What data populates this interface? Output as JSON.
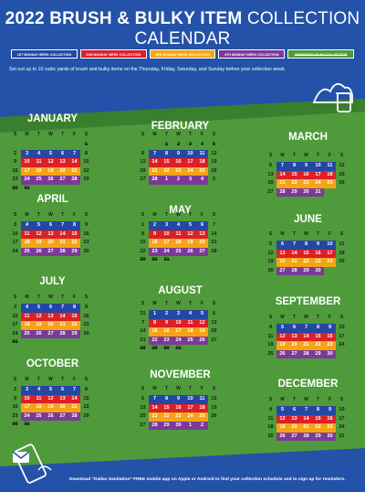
{
  "header": {
    "title_bold": "2022 BRUSH & BULKY ITEM",
    "title_light": "COLLECTION CALENDAR",
    "subtitle": "Set out up to 10 cubic yards of brush and bulky items on the Thursday, Friday, Saturday, and Sunday before your collection week."
  },
  "legend": [
    {
      "label": "1ST MONDAY WEEK COLLECTION",
      "color": "#2547a4"
    },
    {
      "label": "2ND MONDAY WEEK COLLECTION",
      "color": "#dd1f26"
    },
    {
      "label": "3RD MONDAY WEEK COLLECTION",
      "color": "#f5a418"
    },
    {
      "label": "4TH MONDAY WEEK COLLECTION",
      "color": "#7b3a97"
    },
    {
      "label": "WEEKENDS OF NO COLLECTION",
      "color": "#4f9a3b"
    }
  ],
  "dow": [
    "S",
    "M",
    "T",
    "W",
    "T",
    "F",
    "S"
  ],
  "months": [
    {
      "name": "JANUARY",
      "rows": [
        {
          "c": 0,
          "d": [
            "",
            "",
            "",
            "",
            "",
            "",
            "1"
          ]
        },
        {
          "c": 1,
          "d": [
            "2",
            "3",
            "4",
            "5",
            "6",
            "7",
            "8"
          ]
        },
        {
          "c": 2,
          "d": [
            "9",
            "10",
            "11",
            "12",
            "13",
            "14",
            "15"
          ]
        },
        {
          "c": 3,
          "d": [
            "16",
            "17",
            "18",
            "19",
            "20",
            "21",
            "22"
          ]
        },
        {
          "c": 4,
          "d": [
            "23",
            "24",
            "25",
            "26",
            "27",
            "28",
            "29"
          ]
        },
        {
          "c": 0,
          "d": [
            "30",
            "31",
            "",
            "",
            "",
            "",
            ""
          ]
        }
      ]
    },
    {
      "name": "FEBRUARY",
      "rows": [
        {
          "c": 0,
          "d": [
            "",
            "",
            "1",
            "2",
            "3",
            "4",
            "5"
          ]
        },
        {
          "c": 1,
          "d": [
            "6",
            "7",
            "8",
            "9",
            "10",
            "11",
            "12"
          ]
        },
        {
          "c": 2,
          "d": [
            "13",
            "14",
            "15",
            "16",
            "17",
            "18",
            "19"
          ]
        },
        {
          "c": 3,
          "d": [
            "20",
            "21",
            "22",
            "23",
            "24",
            "25",
            "26"
          ]
        },
        {
          "c": 4,
          "d": [
            "27",
            "28",
            "1",
            "2",
            "3",
            "4",
            "5"
          ]
        }
      ]
    },
    {
      "name": "MARCH",
      "rows": [
        {
          "c": 1,
          "d": [
            "6",
            "7",
            "8",
            "9",
            "10",
            "11",
            "12"
          ]
        },
        {
          "c": 2,
          "d": [
            "13",
            "14",
            "15",
            "16",
            "17",
            "18",
            "19"
          ]
        },
        {
          "c": 3,
          "d": [
            "20",
            "21",
            "22",
            "23",
            "24",
            "25",
            "26"
          ]
        },
        {
          "c": 4,
          "d": [
            "27",
            "28",
            "29",
            "30",
            "31",
            "",
            ""
          ]
        }
      ]
    },
    {
      "name": "APRIL",
      "rows": [
        {
          "c": 1,
          "d": [
            "3",
            "4",
            "5",
            "6",
            "7",
            "8",
            "9"
          ]
        },
        {
          "c": 2,
          "d": [
            "10",
            "11",
            "12",
            "13",
            "14",
            "15",
            "16"
          ]
        },
        {
          "c": 3,
          "d": [
            "17",
            "18",
            "19",
            "20",
            "21",
            "22",
            "23"
          ]
        },
        {
          "c": 4,
          "d": [
            "24",
            "25",
            "26",
            "27",
            "28",
            "29",
            "30"
          ]
        }
      ]
    },
    {
      "name": "MAY",
      "rows": [
        {
          "c": 1,
          "d": [
            "1",
            "2",
            "3",
            "4",
            "5",
            "6",
            "7"
          ]
        },
        {
          "c": 2,
          "d": [
            "8",
            "9",
            "10",
            "11",
            "12",
            "13",
            "14"
          ]
        },
        {
          "c": 3,
          "d": [
            "15",
            "16",
            "17",
            "18",
            "19",
            "20",
            "21"
          ]
        },
        {
          "c": 4,
          "d": [
            "22",
            "23",
            "24",
            "25",
            "26",
            "27",
            "28"
          ]
        },
        {
          "c": 0,
          "d": [
            "29",
            "30",
            "31",
            "",
            "",
            "",
            ""
          ]
        }
      ]
    },
    {
      "name": "JUNE",
      "rows": [
        {
          "c": 1,
          "d": [
            "5",
            "6",
            "7",
            "8",
            "9",
            "10",
            "11"
          ]
        },
        {
          "c": 2,
          "d": [
            "12",
            "13",
            "14",
            "15",
            "16",
            "17",
            "18"
          ]
        },
        {
          "c": 3,
          "d": [
            "19",
            "20",
            "21",
            "22",
            "23",
            "24",
            "25"
          ]
        },
        {
          "c": 4,
          "d": [
            "26",
            "27",
            "28",
            "29",
            "30",
            "",
            ""
          ]
        }
      ]
    },
    {
      "name": "JULY",
      "rows": [
        {
          "c": 1,
          "d": [
            "3",
            "4",
            "5",
            "6",
            "7",
            "8",
            "9"
          ]
        },
        {
          "c": 2,
          "d": [
            "10",
            "11",
            "12",
            "13",
            "14",
            "15",
            "16"
          ]
        },
        {
          "c": 3,
          "d": [
            "17",
            "18",
            "19",
            "20",
            "21",
            "22",
            "23"
          ]
        },
        {
          "c": 4,
          "d": [
            "24",
            "25",
            "26",
            "27",
            "28",
            "29",
            "30"
          ]
        },
        {
          "c": 0,
          "d": [
            "31",
            "",
            "",
            "",
            "",
            "",
            ""
          ]
        }
      ]
    },
    {
      "name": "AUGUST",
      "rows": [
        {
          "c": 1,
          "d": [
            "31",
            "1",
            "2",
            "3",
            "4",
            "5",
            "6"
          ]
        },
        {
          "c": 2,
          "d": [
            "7",
            "8",
            "9",
            "10",
            "11",
            "12",
            "13"
          ]
        },
        {
          "c": 3,
          "d": [
            "14",
            "15",
            "16",
            "17",
            "18",
            "19",
            "20"
          ]
        },
        {
          "c": 4,
          "d": [
            "21",
            "22",
            "23",
            "24",
            "25",
            "26",
            "27"
          ]
        },
        {
          "c": 0,
          "d": [
            "28",
            "29",
            "30",
            "31",
            "",
            "",
            ""
          ]
        }
      ]
    },
    {
      "name": "SEPTEMBER",
      "rows": [
        {
          "c": 1,
          "d": [
            "4",
            "5",
            "6",
            "7",
            "8",
            "9",
            "10"
          ]
        },
        {
          "c": 2,
          "d": [
            "11",
            "12",
            "13",
            "14",
            "15",
            "16",
            "17"
          ]
        },
        {
          "c": 3,
          "d": [
            "18",
            "19",
            "20",
            "21",
            "22",
            "23",
            "24"
          ]
        },
        {
          "c": 4,
          "d": [
            "25",
            "26",
            "27",
            "28",
            "29",
            "30",
            ""
          ]
        }
      ]
    },
    {
      "name": "OCTOBER",
      "rows": [
        {
          "c": 1,
          "d": [
            "2",
            "3",
            "4",
            "5",
            "6",
            "7",
            "8"
          ]
        },
        {
          "c": 2,
          "d": [
            "9",
            "10",
            "11",
            "12",
            "13",
            "14",
            "15"
          ]
        },
        {
          "c": 3,
          "d": [
            "16",
            "17",
            "18",
            "19",
            "20",
            "21",
            "22"
          ]
        },
        {
          "c": 4,
          "d": [
            "23",
            "24",
            "25",
            "26",
            "27",
            "28",
            "29"
          ]
        },
        {
          "c": 0,
          "d": [
            "30",
            "31",
            "",
            "",
            "",
            "",
            ""
          ]
        }
      ]
    },
    {
      "name": "NOVEMBER",
      "rows": [
        {
          "c": 1,
          "d": [
            "6",
            "7",
            "8",
            "9",
            "10",
            "11",
            "12"
          ]
        },
        {
          "c": 2,
          "d": [
            "13",
            "14",
            "15",
            "16",
            "17",
            "18",
            "19"
          ]
        },
        {
          "c": 3,
          "d": [
            "20",
            "21",
            "22",
            "23",
            "24",
            "25",
            "26"
          ]
        },
        {
          "c": 4,
          "d": [
            "27",
            "28",
            "29",
            "30",
            "1",
            "2",
            ""
          ]
        }
      ]
    },
    {
      "name": "DECEMBER",
      "rows": [
        {
          "c": 1,
          "d": [
            "4",
            "5",
            "6",
            "7",
            "8",
            "9",
            "10"
          ]
        },
        {
          "c": 2,
          "d": [
            "11",
            "12",
            "13",
            "14",
            "15",
            "16",
            "17"
          ]
        },
        {
          "c": 3,
          "d": [
            "18",
            "19",
            "20",
            "21",
            "22",
            "23",
            "24"
          ]
        },
        {
          "c": 4,
          "d": [
            "25",
            "26",
            "27",
            "28",
            "29",
            "30",
            "31"
          ]
        }
      ]
    }
  ],
  "footer": {
    "text": "Download \"Dallas Sanitation\" FREE mobile app on Apple or Android to find your collection schedule and to sign up for reminders."
  }
}
